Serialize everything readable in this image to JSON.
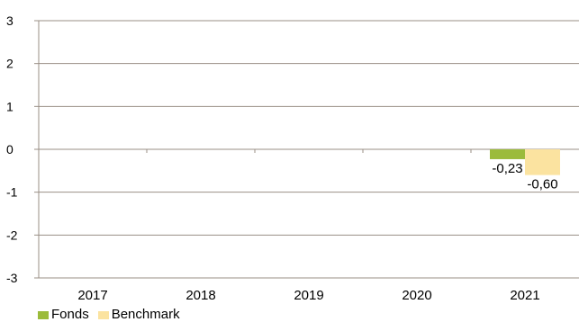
{
  "chart_data": {
    "type": "bar",
    "categories": [
      "2017",
      "2018",
      "2019",
      "2020",
      "2021"
    ],
    "series": [
      {
        "name": "Fonds",
        "values": [
          null,
          null,
          null,
          null,
          -0.23
        ],
        "labels": [
          "",
          "",
          "",
          "",
          "-0,23"
        ],
        "color": "#9bbb3b"
      },
      {
        "name": "Benchmark",
        "values": [
          null,
          null,
          null,
          null,
          -0.6
        ],
        "labels": [
          "",
          "",
          "",
          "",
          "-0,60"
        ],
        "color": "#fbe3a0"
      }
    ],
    "yticks": [
      3,
      2,
      1,
      0,
      -1,
      -2,
      -3
    ],
    "ylim": [
      -3,
      3
    ],
    "grid": true,
    "legend_position": "bottom-left",
    "title": "",
    "xlabel": "",
    "ylabel": ""
  }
}
